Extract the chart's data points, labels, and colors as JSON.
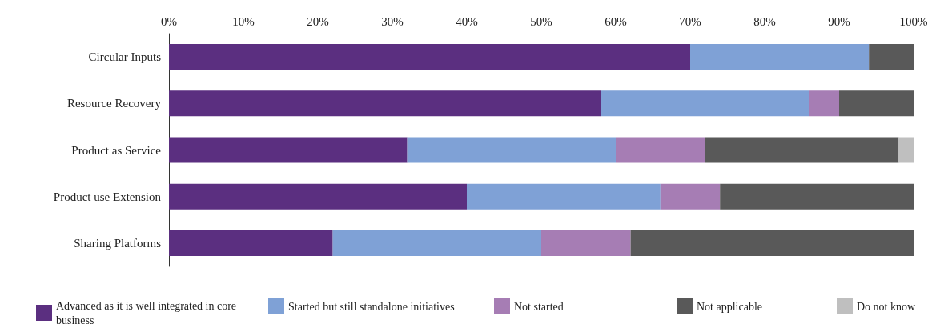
{
  "chart_data": {
    "type": "bar",
    "orientation": "horizontal",
    "stacked": true,
    "categories": [
      "Circular Inputs",
      "Resource Recovery",
      "Product as Service",
      "Product use Extension",
      "Sharing Platforms"
    ],
    "series": [
      {
        "name": "Advanced as it is well integrated in core business",
        "color": "#5b2f80",
        "values": [
          70,
          58,
          32,
          40,
          22
        ]
      },
      {
        "name": "Started but still standalone initiatives",
        "color": "#7fa1d6",
        "values": [
          24,
          28,
          28,
          26,
          28
        ]
      },
      {
        "name": "Not started",
        "color": "#a67db4",
        "values": [
          null,
          4,
          12,
          8,
          12
        ]
      },
      {
        "name": "Not applicable",
        "color": "#595959",
        "values": [
          6,
          10,
          26,
          26,
          38
        ]
      },
      {
        "name": "Do not know",
        "color": "#bfbfbf",
        "values": [
          null,
          null,
          2,
          null,
          null
        ]
      }
    ],
    "xlim": [
      0,
      100
    ],
    "xticks": [
      {
        "value": 0,
        "label": "0%"
      },
      {
        "value": 10,
        "label": "10%"
      },
      {
        "value": 20,
        "label": "20%"
      },
      {
        "value": 30,
        "label": "30%"
      },
      {
        "value": 40,
        "label": "40%"
      },
      {
        "value": 50,
        "label": "50%"
      },
      {
        "value": 60,
        "label": "60%"
      },
      {
        "value": 70,
        "label": "70%"
      },
      {
        "value": 80,
        "label": "80%"
      },
      {
        "value": 90,
        "label": "90%"
      },
      {
        "value": 100,
        "label": "100%"
      }
    ],
    "grid": false,
    "legend": "bottom"
  }
}
